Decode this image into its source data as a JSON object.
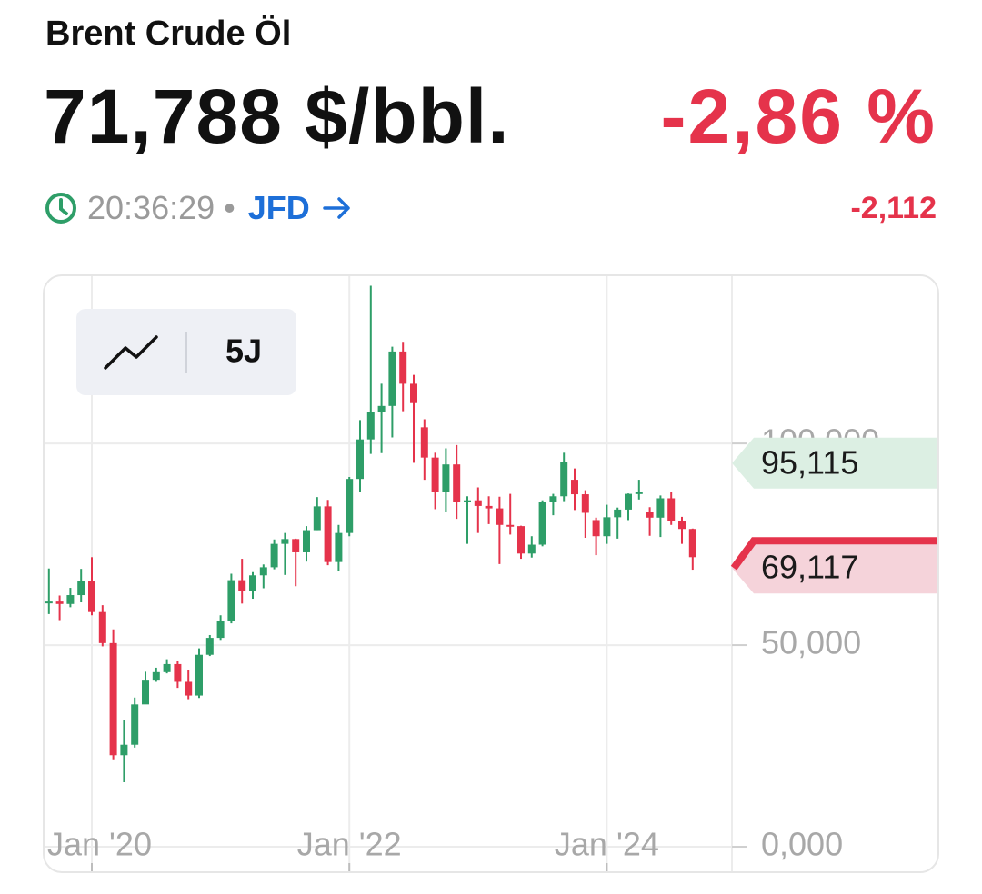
{
  "header": {
    "title": "Brent Crude Öl",
    "price": "71,788 $/bbl.",
    "change_percent": "-2,86 %",
    "time": "20:36:29",
    "separator": "•",
    "source": "JFD",
    "change": "-2,112"
  },
  "controls": {
    "range": "5J"
  },
  "chart_data": {
    "type": "candlestick",
    "up_color": "#2e9e68",
    "down_color": "#e5334b",
    "grid": true,
    "categories": [
      null,
      null,
      null,
      null,
      "Jan '20",
      null,
      null,
      null,
      null,
      null,
      null,
      null,
      null,
      null,
      null,
      null,
      null,
      null,
      null,
      null,
      null,
      null,
      null,
      null,
      null,
      null,
      null,
      null,
      "Jan '22",
      null,
      null,
      null,
      null,
      null,
      null,
      null,
      null,
      null,
      null,
      null,
      null,
      null,
      null,
      null,
      null,
      null,
      null,
      null,
      null,
      null,
      null,
      null,
      "Jan '24",
      null,
      null,
      null,
      null,
      null,
      null,
      null,
      null
    ],
    "open": [
      60.4,
      60.8,
      60.2,
      62.4,
      66.0,
      58.2,
      50.5,
      22.7,
      25.3,
      35.3,
      41.2,
      43.3,
      45.3,
      40.9,
      37.5,
      47.6,
      51.8,
      55.9,
      66.1,
      63.5,
      67.3,
      69.3,
      75.1,
      76.3,
      73.0,
      78.5,
      84.4,
      70.6,
      77.8,
      91.2,
      101.0,
      107.9,
      109.3,
      122.8,
      114.8,
      104.0,
      96.5,
      88.0,
      94.8,
      85.4,
      85.9,
      84.5,
      83.9,
      79.8,
      79.5,
      72.7,
      74.9,
      85.6,
      86.9,
      91.0,
      87.4,
      81.0,
      77.0,
      81.7,
      83.6,
      87.5,
      83.0,
      81.6,
      86.4,
      80.7,
      78.8
    ],
    "high": [
      69.0,
      62.3,
      64.2,
      68.9,
      71.8,
      59.9,
      53.9,
      31.4,
      37.0,
      43.4,
      44.4,
      46.5,
      46.0,
      43.9,
      49.2,
      52.5,
      57.4,
      67.7,
      71.4,
      68.1,
      70.0,
      76.2,
      77.8,
      76.4,
      79.5,
      86.7,
      86.0,
      79.8,
      91.7,
      105.8,
      139.1,
      114.8,
      124.0,
      125.2,
      117.0,
      106.0,
      97.7,
      98.8,
      99.6,
      86.9,
      89.1,
      86.9,
      86.8,
      87.5,
      79.6,
      77.0,
      85.9,
      87.5,
      97.7,
      93.8,
      88.4,
      81.6,
      84.8,
      84.1,
      87.6,
      91.0,
      84.2,
      87.1,
      87.9,
      81.8,
      78.9
    ],
    "low": [
      57.7,
      56.2,
      59.4,
      60.6,
      57.4,
      49.7,
      21.7,
      16.0,
      24.6,
      35.4,
      40.9,
      43.0,
      39.4,
      36.6,
      36.9,
      47.3,
      51.3,
      55.4,
      60.3,
      61.5,
      64.1,
      68.8,
      67.4,
      64.6,
      70.7,
      78.5,
      69.8,
      68.4,
      77.0,
      88.0,
      97.4,
      97.6,
      101.5,
      108.0,
      95.2,
      91.0,
      83.7,
      83.0,
      81.3,
      75.1,
      77.8,
      80.0,
      70.1,
      77.4,
      71.4,
      71.7,
      74.5,
      82.2,
      85.7,
      83.5,
      76.6,
      72.3,
      75.1,
      76.4,
      81.0,
      86.1,
      77.1,
      76.8,
      79.8,
      75.1,
      68.7
    ],
    "close": [
      60.8,
      60.2,
      62.4,
      66.0,
      58.2,
      50.5,
      22.7,
      25.3,
      35.3,
      41.2,
      43.3,
      45.3,
      40.9,
      37.5,
      47.6,
      51.8,
      55.9,
      66.1,
      63.5,
      67.3,
      69.3,
      75.1,
      76.3,
      73.0,
      78.5,
      84.4,
      70.6,
      77.8,
      91.2,
      101.0,
      107.9,
      109.3,
      122.8,
      114.8,
      110.0,
      96.5,
      88.0,
      94.8,
      85.4,
      85.9,
      84.5,
      83.9,
      79.8,
      79.5,
      72.7,
      74.9,
      85.6,
      86.9,
      95.3,
      87.4,
      82.8,
      77.0,
      81.7,
      83.6,
      87.5,
      87.9,
      81.6,
      86.4,
      80.7,
      78.8,
      71.8
    ],
    "ylim": [
      -6.3,
      141.7
    ],
    "yticks": [
      {
        "value": 0,
        "label": "0,000"
      },
      {
        "value": 50,
        "label": "50,000"
      },
      {
        "value": 100,
        "label": "100,000"
      }
    ],
    "price_tags": [
      {
        "value": 95.115,
        "label": "95,115",
        "color": "#2e9e68",
        "fill": "#dcefe3"
      },
      {
        "value": 69.117,
        "label": "69,117",
        "color": "#e5334b",
        "fill": "#f5d3da"
      }
    ]
  }
}
